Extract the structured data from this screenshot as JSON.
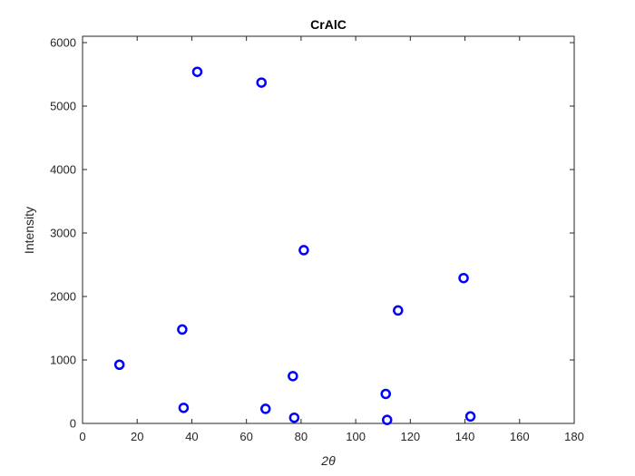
{
  "chart_data": {
    "type": "scatter",
    "title": "CrAlC",
    "xlabel": "2θ",
    "ylabel": "Intensity",
    "xlim": [
      0,
      180
    ],
    "ylim": [
      0,
      6100
    ],
    "xticks": [
      0,
      20,
      40,
      60,
      80,
      100,
      120,
      140,
      160,
      180
    ],
    "yticks": [
      0,
      1000,
      2000,
      3000,
      4000,
      5000,
      6000
    ],
    "grid": false,
    "legend": "none",
    "marker": "circle-open",
    "color": "#0000ff",
    "x": [
      13.5,
      36.5,
      37,
      42,
      65.5,
      67,
      77,
      77.5,
      81,
      111,
      111.5,
      115.5,
      139.5,
      142
    ],
    "y": [
      925,
      1480,
      245,
      5540,
      5370,
      230,
      745,
      90,
      2730,
      465,
      55,
      1780,
      2290,
      110
    ]
  }
}
